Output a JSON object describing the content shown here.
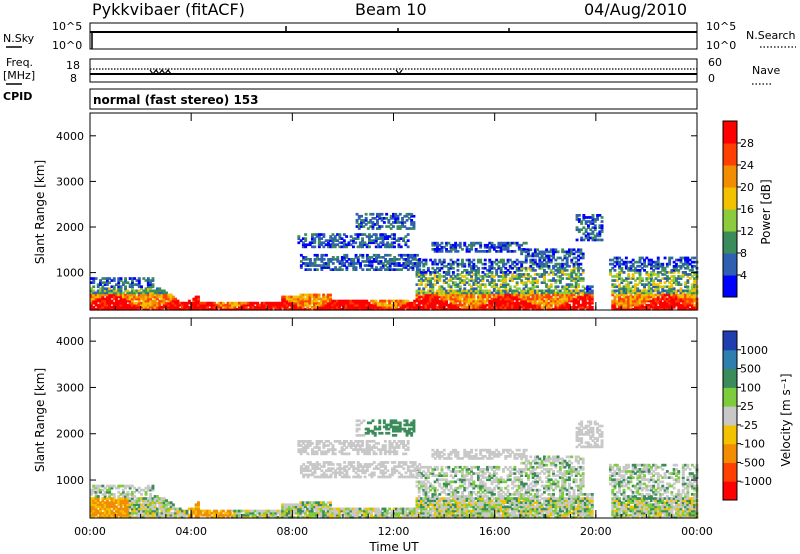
{
  "header": {
    "station": "Pykkvibaer (fitACF)",
    "beam": "Beam 10",
    "date": "04/Aug/2010"
  },
  "noise_panel": {
    "left_label": "N.Sky",
    "left_ticks": [
      "10^5",
      "10^0"
    ],
    "right_label": "N.Search",
    "right_ticks": [
      "10^5",
      "10^0"
    ]
  },
  "freq_panel": {
    "left_label_1": "Freq.",
    "left_label_2": "[MHz]",
    "left_ticks": [
      "18",
      "8"
    ],
    "right_label": "Nave",
    "right_ticks": [
      "60",
      "0"
    ]
  },
  "cpid": {
    "label": "CPID",
    "value": "normal (fast stereo) 153"
  },
  "chart_data": [
    {
      "type": "heatmap",
      "panel": "power",
      "ylabel": "Slant Range [km]",
      "xlabel": "",
      "y_ticks": [
        1000,
        2000,
        3000,
        4000
      ],
      "ylim": [
        180,
        4500
      ],
      "x_ticks": [
        "00:00",
        "04:00",
        "08:00",
        "12:00",
        "16:00",
        "20:00",
        "00:00"
      ],
      "xlim_hours": [
        0,
        24
      ],
      "colorbar": {
        "label": "Power [dB]",
        "ticks": [
          "4",
          "8",
          "12",
          "16",
          "20",
          "24",
          "28"
        ],
        "colors": [
          "#0000ff",
          "#2e5fb0",
          "#3a8c5a",
          "#8ccc3c",
          "#f2c200",
          "#f28c00",
          "#ff4000",
          "#ff0000"
        ]
      }
    },
    {
      "type": "heatmap",
      "panel": "velocity",
      "ylabel": "Slant Range [km]",
      "xlabel": "Time UT",
      "y_ticks": [
        1000,
        2000,
        3000,
        4000
      ],
      "ylim": [
        180,
        4500
      ],
      "x_ticks": [
        "00:00",
        "04:00",
        "08:00",
        "12:00",
        "16:00",
        "20:00",
        "00:00"
      ],
      "xlim_hours": [
        0,
        24
      ],
      "colorbar": {
        "label": "Velocity [m s⁻¹]",
        "ticks": [
          "1000",
          "500",
          "100",
          "25",
          "-25",
          "-100",
          "-500",
          "-1000"
        ],
        "colors": [
          "#1f3fb0",
          "#2e7fb0",
          "#3a8c5a",
          "#7ccc3c",
          "#c8c8c8",
          "#f2c200",
          "#f28c00",
          "#ff4000",
          "#ff0000"
        ]
      }
    }
  ]
}
